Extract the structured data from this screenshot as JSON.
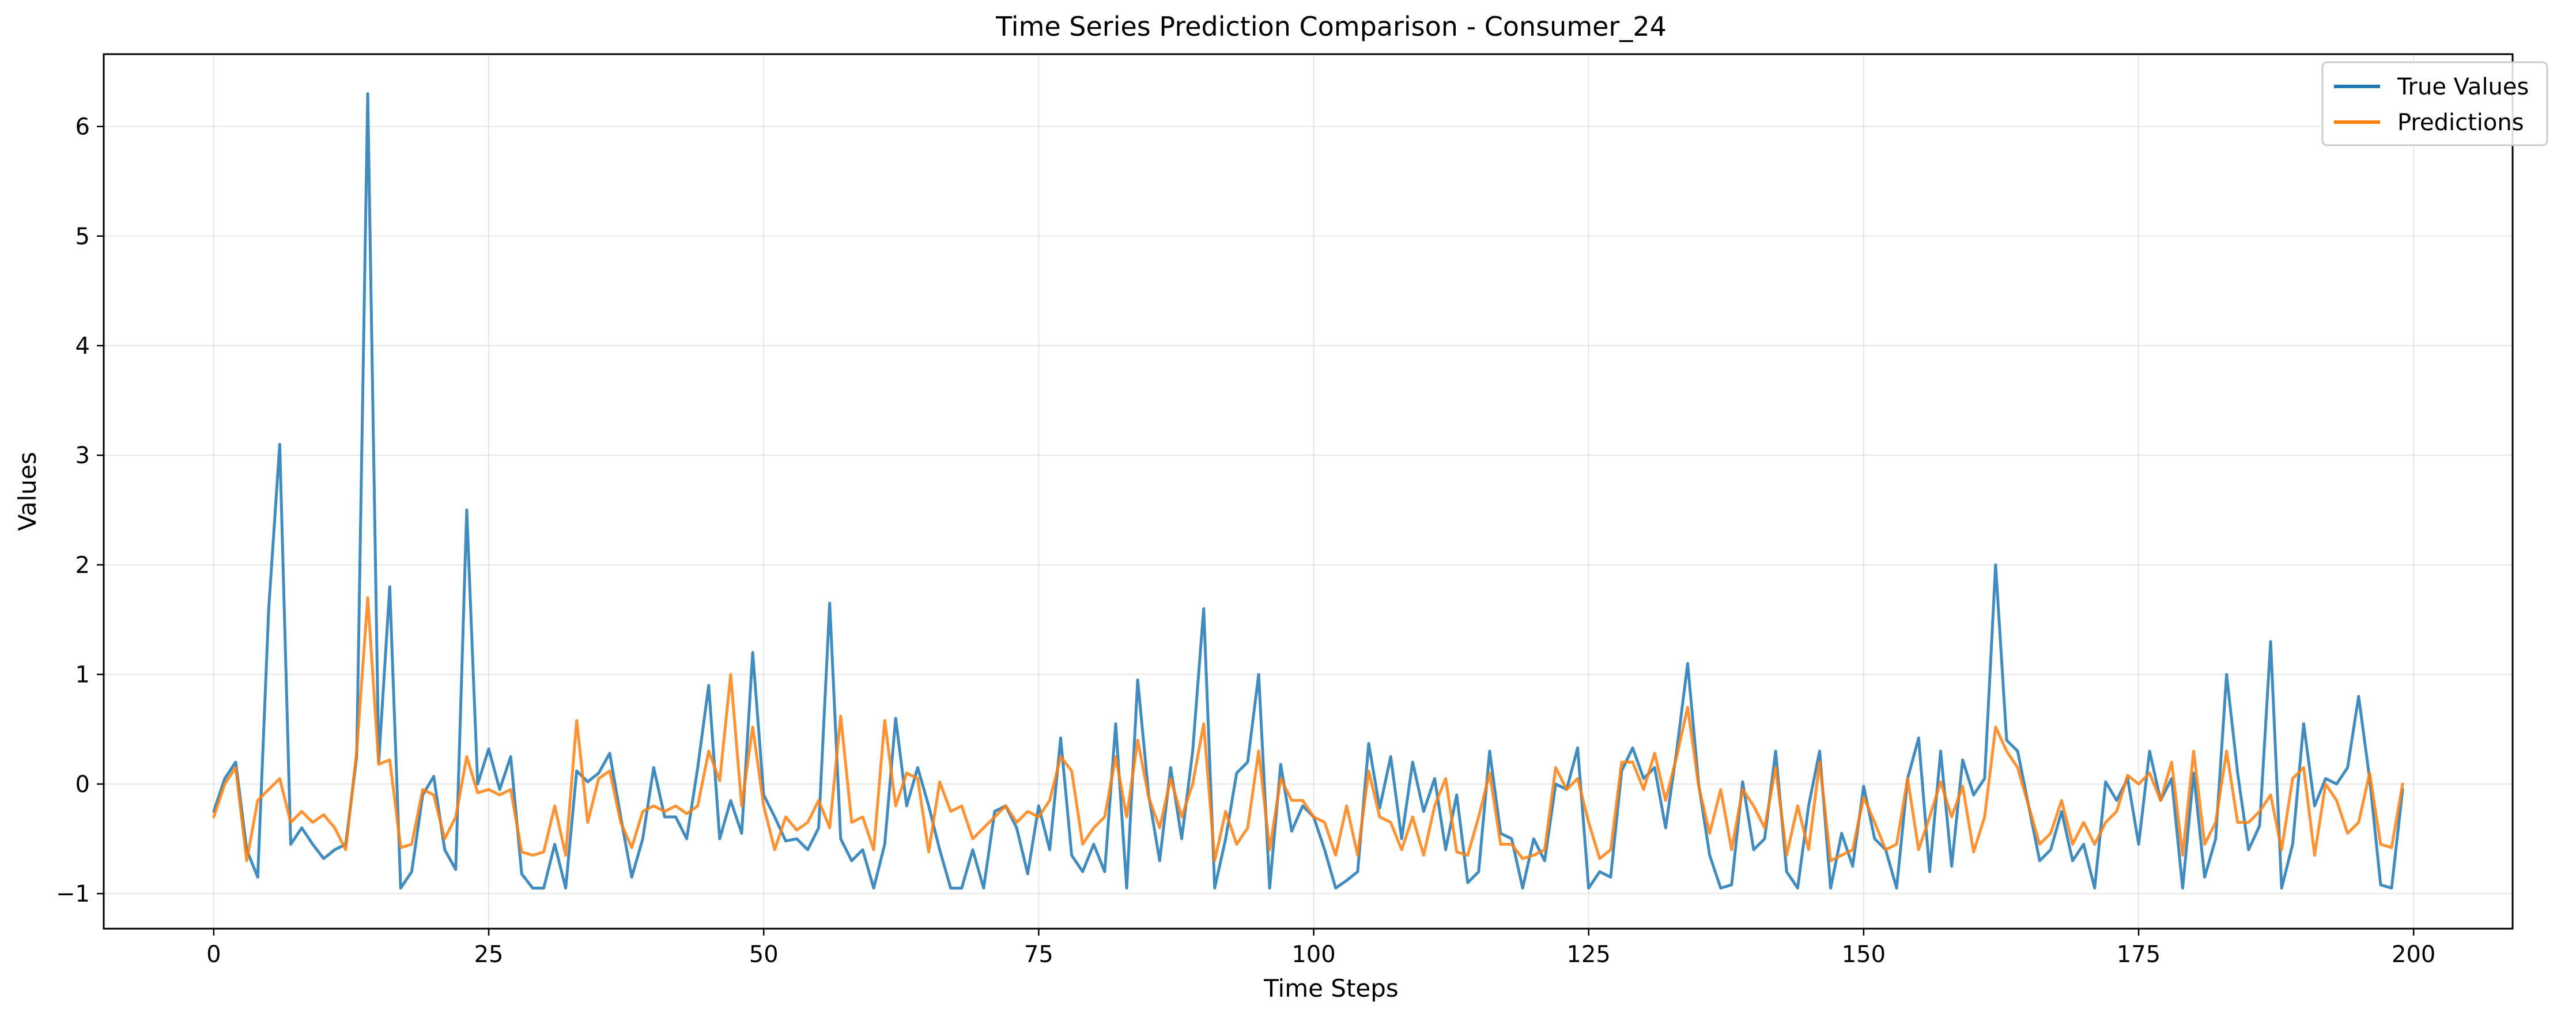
{
  "chart_data": {
    "type": "line",
    "title": "Time Series Prediction Comparison - Consumer_24",
    "xlabel": "Time Steps",
    "ylabel": "Values",
    "xlim": [
      -10,
      209
    ],
    "ylim": [
      -1.32,
      6.66
    ],
    "x_ticks": [
      0,
      25,
      50,
      75,
      100,
      125,
      150,
      175,
      200
    ],
    "y_ticks": [
      -1,
      0,
      1,
      2,
      3,
      4,
      5,
      6
    ],
    "grid": true,
    "legend_position": "top-right",
    "x": [
      0,
      1,
      2,
      3,
      4,
      5,
      6,
      7,
      8,
      9,
      10,
      11,
      12,
      13,
      14,
      15,
      16,
      17,
      18,
      19,
      20,
      21,
      22,
      23,
      24,
      25,
      26,
      27,
      28,
      29,
      30,
      31,
      32,
      33,
      34,
      35,
      36,
      37,
      38,
      39,
      40,
      41,
      42,
      43,
      44,
      45,
      46,
      47,
      48,
      49,
      50,
      51,
      52,
      53,
      54,
      55,
      56,
      57,
      58,
      59,
      60,
      61,
      62,
      63,
      64,
      65,
      66,
      67,
      68,
      69,
      70,
      71,
      72,
      73,
      74,
      75,
      76,
      77,
      78,
      79,
      80,
      81,
      82,
      83,
      84,
      85,
      86,
      87,
      88,
      89,
      90,
      91,
      92,
      93,
      94,
      95,
      96,
      97,
      98,
      99,
      100,
      101,
      102,
      103,
      104,
      105,
      106,
      107,
      108,
      109,
      110,
      111,
      112,
      113,
      114,
      115,
      116,
      117,
      118,
      119,
      120,
      121,
      122,
      123,
      124,
      125,
      126,
      127,
      128,
      129,
      130,
      131,
      132,
      133,
      134,
      135,
      136,
      137,
      138,
      139,
      140,
      141,
      142,
      143,
      144,
      145,
      146,
      147,
      148,
      149,
      150,
      151,
      152,
      153,
      154,
      155,
      156,
      157,
      158,
      159,
      160,
      161,
      162,
      163,
      164,
      165,
      166,
      167,
      168,
      169,
      170,
      171,
      172,
      173,
      174,
      175,
      176,
      177,
      178,
      179,
      180,
      181,
      182,
      183,
      184,
      185,
      186,
      187,
      188,
      189,
      190,
      191,
      192,
      193,
      194,
      195,
      196,
      197,
      198,
      199
    ],
    "series": [
      {
        "name": "True Values",
        "color": "#1f77b4",
        "values": [
          -0.25,
          0.05,
          0.2,
          -0.6,
          -0.85,
          1.6,
          3.1,
          -0.55,
          -0.4,
          -0.55,
          -0.68,
          -0.6,
          -0.55,
          0.25,
          6.3,
          0.2,
          1.8,
          -0.95,
          -0.8,
          -0.1,
          0.07,
          -0.6,
          -0.78,
          2.5,
          0.0,
          0.32,
          -0.05,
          0.25,
          -0.82,
          -0.95,
          -0.95,
          -0.55,
          -0.95,
          0.12,
          0.02,
          0.1,
          0.28,
          -0.3,
          -0.85,
          -0.5,
          0.15,
          -0.3,
          -0.3,
          -0.5,
          0.15,
          0.9,
          -0.5,
          -0.15,
          -0.45,
          1.2,
          -0.1,
          -0.3,
          -0.52,
          -0.5,
          -0.6,
          -0.4,
          1.65,
          -0.5,
          -0.7,
          -0.6,
          -0.95,
          -0.55,
          0.6,
          -0.2,
          0.15,
          -0.2,
          -0.6,
          -0.95,
          -0.95,
          -0.6,
          -0.95,
          -0.25,
          -0.2,
          -0.4,
          -0.82,
          -0.2,
          -0.6,
          0.42,
          -0.65,
          -0.8,
          -0.55,
          -0.8,
          0.55,
          -0.95,
          0.95,
          -0.1,
          -0.7,
          0.15,
          -0.5,
          0.3,
          1.6,
          -0.95,
          -0.5,
          0.1,
          0.2,
          1.0,
          -0.95,
          0.18,
          -0.43,
          -0.2,
          -0.3,
          -0.6,
          -0.95,
          -0.88,
          -0.8,
          0.37,
          -0.22,
          0.25,
          -0.5,
          0.2,
          -0.25,
          0.05,
          -0.6,
          -0.1,
          -0.9,
          -0.8,
          0.3,
          -0.45,
          -0.5,
          -0.95,
          -0.5,
          -0.7,
          0.0,
          -0.05,
          0.33,
          -0.95,
          -0.8,
          -0.85,
          0.12,
          0.33,
          0.05,
          0.15,
          -0.4,
          0.3,
          1.1,
          0.0,
          -0.65,
          -0.95,
          -0.92,
          0.02,
          -0.6,
          -0.5,
          0.3,
          -0.8,
          -0.95,
          -0.2,
          0.3,
          -0.95,
          -0.45,
          -0.75,
          -0.02,
          -0.5,
          -0.6,
          -0.95,
          0.05,
          0.42,
          -0.8,
          0.3,
          -0.75,
          0.22,
          -0.1,
          0.05,
          2.0,
          0.4,
          0.3,
          -0.2,
          -0.7,
          -0.6,
          -0.25,
          -0.7,
          -0.55,
          -0.95,
          0.02,
          -0.15,
          0.05,
          -0.55,
          0.3,
          -0.15,
          0.05,
          -0.95,
          0.1,
          -0.85,
          -0.5,
          1.0,
          0.1,
          -0.6,
          -0.38,
          1.3,
          -0.95,
          -0.55,
          0.55,
          -0.2,
          0.05,
          0.0,
          0.15,
          0.8,
          0.05,
          -0.92,
          -0.95,
          -0.05
        ]
      },
      {
        "name": "Predictions",
        "color": "#ff7f0e",
        "values": [
          -0.3,
          0.0,
          0.15,
          -0.7,
          -0.15,
          -0.05,
          0.05,
          -0.35,
          -0.25,
          -0.35,
          -0.28,
          -0.4,
          -0.6,
          0.3,
          1.7,
          0.18,
          0.22,
          -0.58,
          -0.55,
          -0.05,
          -0.1,
          -0.5,
          -0.3,
          0.25,
          -0.08,
          -0.05,
          -0.1,
          -0.05,
          -0.62,
          -0.65,
          -0.62,
          -0.2,
          -0.65,
          0.58,
          -0.35,
          0.05,
          0.12,
          -0.35,
          -0.58,
          -0.25,
          -0.2,
          -0.25,
          -0.2,
          -0.27,
          -0.2,
          0.3,
          0.03,
          1.0,
          -0.2,
          0.52,
          -0.2,
          -0.6,
          -0.3,
          -0.42,
          -0.35,
          -0.15,
          -0.4,
          0.62,
          -0.35,
          -0.3,
          -0.6,
          0.58,
          -0.2,
          0.1,
          0.05,
          -0.62,
          0.02,
          -0.25,
          -0.2,
          -0.5,
          -0.4,
          -0.3,
          -0.2,
          -0.35,
          -0.25,
          -0.3,
          -0.15,
          0.25,
          0.12,
          -0.55,
          -0.4,
          -0.3,
          0.25,
          -0.3,
          0.4,
          -0.12,
          -0.4,
          0.05,
          -0.3,
          0.0,
          0.55,
          -0.7,
          -0.25,
          -0.55,
          -0.4,
          0.3,
          -0.6,
          0.05,
          -0.15,
          -0.15,
          -0.3,
          -0.35,
          -0.65,
          -0.2,
          -0.65,
          0.12,
          -0.3,
          -0.35,
          -0.6,
          -0.3,
          -0.65,
          -0.2,
          0.05,
          -0.62,
          -0.65,
          -0.3,
          0.1,
          -0.55,
          -0.55,
          -0.68,
          -0.65,
          -0.6,
          0.15,
          -0.05,
          0.05,
          -0.35,
          -0.68,
          -0.6,
          0.2,
          0.2,
          -0.05,
          0.28,
          -0.15,
          0.25,
          0.7,
          -0.02,
          -0.45,
          -0.05,
          -0.6,
          -0.05,
          -0.2,
          -0.4,
          0.15,
          -0.65,
          -0.2,
          -0.6,
          0.2,
          -0.7,
          -0.65,
          -0.6,
          -0.12,
          -0.35,
          -0.6,
          -0.55,
          0.05,
          -0.6,
          -0.3,
          0.02,
          -0.3,
          -0.02,
          -0.62,
          -0.3,
          0.52,
          0.3,
          0.15,
          -0.2,
          -0.55,
          -0.45,
          -0.15,
          -0.55,
          -0.35,
          -0.55,
          -0.35,
          -0.25,
          0.08,
          0.0,
          0.1,
          -0.15,
          0.2,
          -0.65,
          0.3,
          -0.55,
          -0.35,
          0.3,
          -0.35,
          -0.35,
          -0.25,
          -0.1,
          -0.6,
          0.05,
          0.15,
          -0.65,
          0.0,
          -0.15,
          -0.45,
          -0.35,
          0.1,
          -0.55,
          -0.58,
          0.0
        ]
      }
    ]
  }
}
